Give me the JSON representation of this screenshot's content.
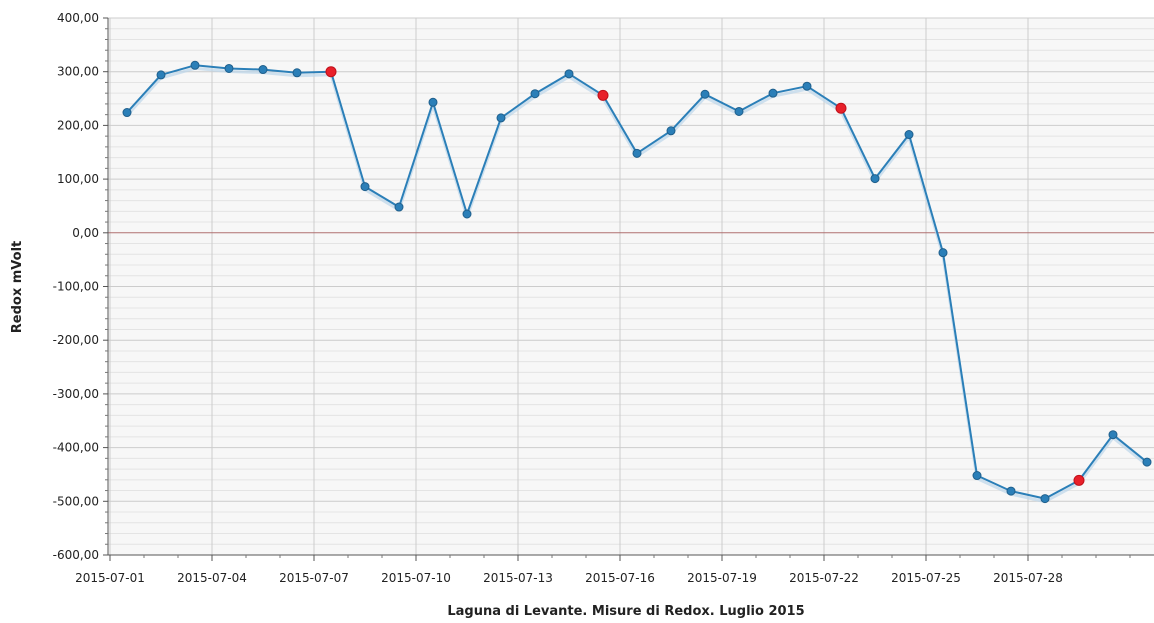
{
  "chart_data": {
    "type": "line",
    "xlabel": "Laguna di Levante. Misure di Redox. Luglio 2015",
    "ylabel": "Redox mVolt",
    "ylim": [
      -600,
      400
    ],
    "y_ticks": [
      "400,00",
      "300,00",
      "200,00",
      "100,00",
      "0,00",
      "-100,00",
      "-200,00",
      "-300,00",
      "-400,00",
      "-500,00",
      "-600,00"
    ],
    "y_tick_values": [
      400,
      300,
      200,
      100,
      0,
      -100,
      -200,
      -300,
      -400,
      -500,
      -600
    ],
    "x_tick_labels": [
      "2015-07-01",
      "2015-07-04",
      "2015-07-07",
      "2015-07-10",
      "2015-07-13",
      "2015-07-16",
      "2015-07-19",
      "2015-07-22",
      "2015-07-25",
      "2015-07-28"
    ],
    "x": [
      "2015-07-01",
      "2015-07-02",
      "2015-07-03",
      "2015-07-04",
      "2015-07-05",
      "2015-07-06",
      "2015-07-07",
      "2015-07-08",
      "2015-07-09",
      "2015-07-10",
      "2015-07-11",
      "2015-07-12",
      "2015-07-13",
      "2015-07-14",
      "2015-07-15",
      "2015-07-16",
      "2015-07-17",
      "2015-07-18",
      "2015-07-19",
      "2015-07-20",
      "2015-07-21",
      "2015-07-22",
      "2015-07-23",
      "2015-07-24",
      "2015-07-25",
      "2015-07-26",
      "2015-07-27",
      "2015-07-28",
      "2015-07-29",
      "2015-07-30",
      "2015-07-31"
    ],
    "values": [
      224,
      294,
      312,
      306,
      304,
      298,
      300,
      86,
      48,
      243,
      35,
      214,
      259,
      296,
      256,
      148,
      190,
      258,
      226,
      260,
      273,
      232,
      101,
      183,
      -37,
      -452,
      -481,
      -495,
      -461,
      -376,
      -427
    ],
    "highlighted_points": [
      "2015-07-07",
      "2015-07-15",
      "2015-07-22",
      "2015-07-29"
    ],
    "grid": true,
    "colors": {
      "line": "#2b7fb8",
      "marker": "#2b7fb8",
      "highlight": "#e8202a",
      "zero_line": "#b07070",
      "grid_major": "#cccccc",
      "grid_minor": "#e4e4e4"
    }
  }
}
